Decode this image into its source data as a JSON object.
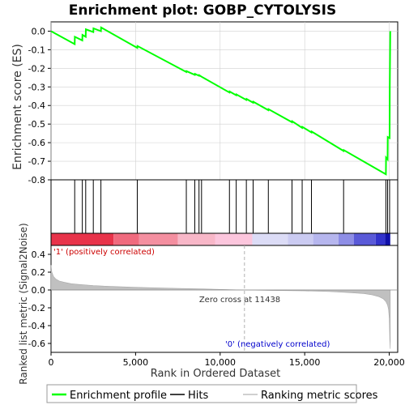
{
  "chart_data": {
    "type": "line",
    "title": "Enrichment plot: GOBP_CYTOLYSIS",
    "colors": {
      "enrichment_line": "#00ff00",
      "hits": "#000000",
      "metric_fill": "#c0c0c0",
      "zero_line": "#b0b0b0",
      "grid": "#d0d0d0",
      "positive_label": "#cc0000",
      "negative_label": "#0000cc"
    },
    "top_panel": {
      "ylabel": "Enrichment score (ES)",
      "ylim": [
        -0.8,
        0.05
      ],
      "yticks": [
        -0.8,
        -0.7,
        -0.6,
        -0.5,
        -0.4,
        -0.3,
        -0.2,
        -0.1,
        0.0
      ],
      "ytick_labels": [
        "-0.8",
        "-0.7",
        "-0.6",
        "-0.5",
        "-0.4",
        "-0.3",
        "-0.2",
        "-0.1",
        "0.0"
      ],
      "series": [
        {
          "name": "Enrichment profile",
          "x": [
            0,
            1400,
            1410,
            1850,
            1860,
            2050,
            2060,
            2500,
            2510,
            2950,
            2960,
            5100,
            5110,
            8000,
            8010,
            8500,
            8510,
            8750,
            8760,
            8900,
            10550,
            10560,
            10950,
            10960,
            11550,
            11560,
            11950,
            11960,
            12850,
            12860,
            14250,
            14260,
            14850,
            14860,
            15400,
            15410,
            17300,
            17310,
            19800,
            19810,
            19900,
            19910,
            20020,
            20030,
            20040,
            20060
          ],
          "y": [
            0.0,
            -0.07,
            -0.03,
            -0.05,
            -0.02,
            -0.03,
            0.01,
            -0.005,
            0.015,
            0.0,
            0.02,
            -0.09,
            -0.08,
            -0.22,
            -0.215,
            -0.235,
            -0.23,
            -0.24,
            -0.237,
            -0.245,
            -0.33,
            -0.325,
            -0.345,
            -0.34,
            -0.37,
            -0.365,
            -0.385,
            -0.38,
            -0.425,
            -0.42,
            -0.49,
            -0.485,
            -0.52,
            -0.515,
            -0.545,
            -0.54,
            -0.645,
            -0.64,
            -0.77,
            -0.68,
            -0.69,
            -0.57,
            -0.575,
            -0.3,
            -0.2,
            0.0
          ]
        }
      ]
    },
    "hits": [
      1400,
      1850,
      2050,
      2500,
      2950,
      5100,
      8000,
      8500,
      8750,
      8900,
      10550,
      10950,
      11550,
      11950,
      12850,
      14250,
      14850,
      15400,
      17300,
      19800,
      19900,
      20020
    ],
    "bottom_panel": {
      "ylabel": "Ranked list metric (Signal2Noise)",
      "xlabel": "Rank in Ordered Dataset",
      "xlim": [
        0,
        20500
      ],
      "xticks": [
        0,
        5000,
        10000,
        15000,
        20000
      ],
      "xtick_labels": [
        "0",
        "5,000",
        "10,000",
        "15,000",
        "20,000"
      ],
      "ylim": [
        -0.7,
        0.5
      ],
      "yticks": [
        -0.6,
        -0.4,
        -0.2,
        0.0,
        0.2,
        0.4
      ],
      "ytick_labels": [
        "-0.6",
        "-0.4",
        "-0.2",
        "0.0",
        "0.2",
        "0.4"
      ],
      "metric_curve": {
        "x": [
          0,
          50,
          150,
          300,
          500,
          800,
          1200,
          1800,
          2500,
          3500,
          5000,
          7000,
          9000,
          11438,
          13000,
          15000,
          16500,
          17500,
          18500,
          19000,
          19400,
          19650,
          19800,
          19900,
          19960,
          20000,
          20030,
          20060
        ],
        "y": [
          0.28,
          0.2,
          0.15,
          0.12,
          0.1,
          0.085,
          0.07,
          0.06,
          0.05,
          0.04,
          0.03,
          0.02,
          0.012,
          0.0,
          -0.005,
          -0.01,
          -0.018,
          -0.028,
          -0.04,
          -0.055,
          -0.075,
          -0.1,
          -0.13,
          -0.17,
          -0.22,
          -0.32,
          -0.55,
          -0.66
        ]
      },
      "zero_cross": 11438,
      "zero_cross_label": "Zero cross at 11438",
      "positive_label": "'1' (positively correlated)",
      "negative_label": "'0' (negatively correlated)"
    },
    "color_bar": {
      "segments": [
        {
          "x0": 0,
          "x1": 3700,
          "color": "#e8334a"
        },
        {
          "x0": 3700,
          "x1": 5200,
          "color": "#f06a7e"
        },
        {
          "x0": 5200,
          "x1": 7500,
          "color": "#f48fa0"
        },
        {
          "x0": 7500,
          "x1": 9700,
          "color": "#f8b7c8"
        },
        {
          "x0": 9700,
          "x1": 11900,
          "color": "#fcc6dd"
        },
        {
          "x0": 11900,
          "x1": 14000,
          "color": "#dcdcf6"
        },
        {
          "x0": 14000,
          "x1": 15500,
          "color": "#cbcbf2"
        },
        {
          "x0": 15500,
          "x1": 17000,
          "color": "#b6b6ee"
        },
        {
          "x0": 17000,
          "x1": 17900,
          "color": "#8e8ee6"
        },
        {
          "x0": 17900,
          "x1": 19200,
          "color": "#5a5ad8"
        },
        {
          "x0": 19200,
          "x1": 19750,
          "color": "#3333cc"
        },
        {
          "x0": 19750,
          "x1": 20060,
          "color": "#1010aa"
        }
      ]
    },
    "legend": {
      "items": [
        {
          "label": "Enrichment profile",
          "kind": "line",
          "color": "#00ff00"
        },
        {
          "label": "Hits",
          "kind": "line",
          "color": "#000000"
        },
        {
          "label": "Ranking metric scores",
          "kind": "line",
          "color": "#c0c0c0"
        }
      ]
    }
  }
}
